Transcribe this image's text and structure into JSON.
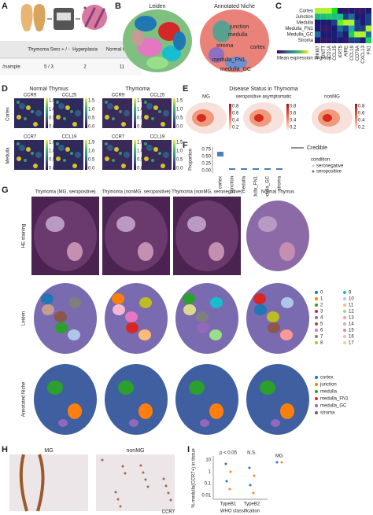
{
  "panel_labels": [
    "A",
    "B",
    "C",
    "D",
    "E",
    "F",
    "G",
    "H",
    "I"
  ],
  "a": {
    "table": {
      "header": [
        "Thymoma Sero + / -",
        "Hyperplasia",
        "Normal thymus"
      ],
      "rows": [
        [
          "#sample",
          "5 / 3",
          "2",
          "11"
        ]
      ]
    }
  },
  "b": {
    "titles": [
      "Leiden",
      "Annotated Niche"
    ],
    "niche_labels": [
      "junction",
      "medulla",
      "stroma",
      "cortex",
      "medulla_FN1",
      "medulla_GC"
    ]
  },
  "c": {
    "rows": [
      "Cortex",
      "Junction",
      "Medulla",
      "Medulla_FN1",
      "Medulla_GC",
      "Stroma"
    ],
    "cols": [
      "MKI67",
      "DNTT",
      "CD1A",
      "CCL25",
      "KRT5",
      "AIRE",
      "CCL19",
      "CD79A",
      "CXCL13",
      "FN1"
    ],
    "legend": "Mean expression in group"
  },
  "d": {
    "titles": [
      "Normal Thymus",
      "Thymoma"
    ],
    "genes": [
      "CCR9",
      "CCL25",
      "CCR7",
      "CCL19"
    ],
    "rows": [
      "Cortex",
      "Medulla"
    ],
    "colorbar_ticks": [
      "1.5",
      "1.0",
      "0.5",
      "0.0"
    ]
  },
  "e": {
    "title": "Disease Status in Thymoma",
    "groups": [
      "MG",
      "seropositive asymptomatic",
      "nonMG"
    ],
    "colorbar_ticks": [
      "0.8",
      "0.6",
      "0.4",
      "0.2"
    ]
  },
  "f": {
    "y_label": "Proportion",
    "yticks": [
      "0.75",
      "0.50",
      "0.25",
      "0.00"
    ],
    "categories": [
      "cortex",
      "junction",
      "medulla",
      "medulla_FN1",
      "medulla_GC",
      "stroma"
    ],
    "legend": [
      "Credible",
      "condition:",
      "seronegative",
      "seropositive"
    ]
  },
  "g": {
    "columns": [
      "Thymoma (MG, seropositive)",
      "Thymoma (nonMG, seropositive)",
      "Thymoma (nonMG, seronegative)",
      "Normal Thymus"
    ],
    "rows": [
      "HE staining",
      "Leiden",
      "Annotated Niche"
    ],
    "leiden_legend": [
      "0",
      "1",
      "2",
      "3",
      "4",
      "5",
      "6",
      "7",
      "8",
      "9",
      "10",
      "11",
      "12",
      "13",
      "14",
      "15",
      "16",
      "17"
    ],
    "niche_legend": [
      "cortex",
      "junction",
      "medulla",
      "medulla_FN1",
      "medulla_GC",
      "stroma"
    ]
  },
  "h": {
    "titles": [
      "MG",
      "nonMG"
    ],
    "stain": "CCR7"
  },
  "i": {
    "y_label": "% medulla(CCR7+) in tissue",
    "yticks": [
      "10",
      "1",
      "0.1",
      "0.01"
    ],
    "categories": [
      "TypeB1",
      "TypeB2"
    ],
    "x_label": "WHO classification",
    "annotations": [
      "p < 0.05",
      "N.S."
    ],
    "legend": "MG"
  }
}
